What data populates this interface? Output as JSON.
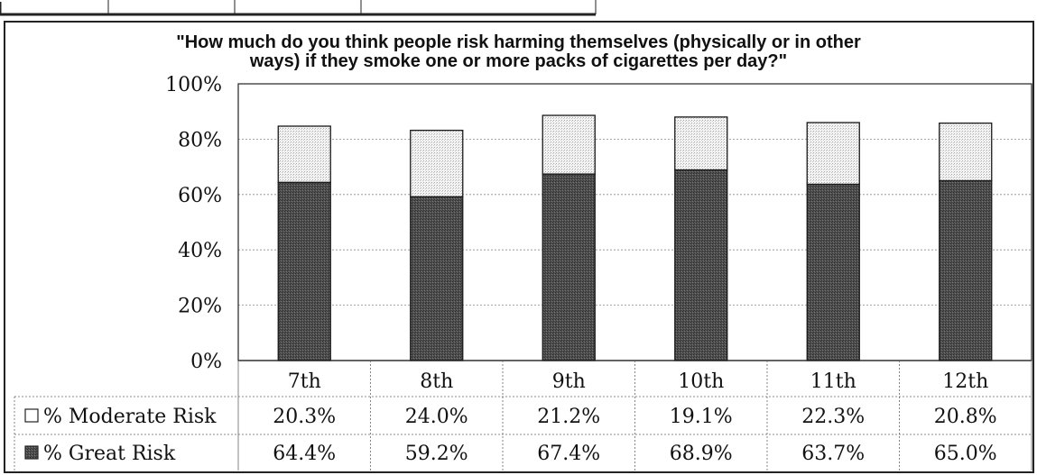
{
  "chart_data": {
    "type": "bar",
    "stacked": true,
    "title": "\"How much do you think people risk harming themselves (physically or in other ways) if they smoke one or more packs of cigarettes per day?\"",
    "title_lines": [
      "\"How much do you think people risk harming themselves (physically or in other",
      "ways) if they smoke one or more packs of cigarettes per day?\""
    ],
    "categories": [
      "7th",
      "8th",
      "9th",
      "10th",
      "11th",
      "12th"
    ],
    "series": [
      {
        "name": "% Great Risk",
        "values": [
          64.4,
          59.2,
          67.4,
          68.9,
          63.7,
          65.0
        ],
        "labels": [
          "64.4%",
          "59.2%",
          "67.4%",
          "68.9%",
          "63.7%",
          "65.0%"
        ],
        "color": "#4a4a4a"
      },
      {
        "name": "% Moderate Risk",
        "values": [
          20.3,
          24.0,
          21.2,
          19.1,
          22.3,
          20.8
        ],
        "labels": [
          "20.3%",
          "24.0%",
          "21.2%",
          "19.1%",
          "22.3%",
          "20.8%"
        ],
        "color": "#e4e4e4"
      }
    ],
    "ylim": [
      0,
      100
    ],
    "yticks": [
      "0%",
      "20%",
      "40%",
      "60%",
      "80%",
      "100%"
    ],
    "grid": true,
    "legend_placement": "data table below chart",
    "xlabel": "",
    "ylabel": ""
  }
}
